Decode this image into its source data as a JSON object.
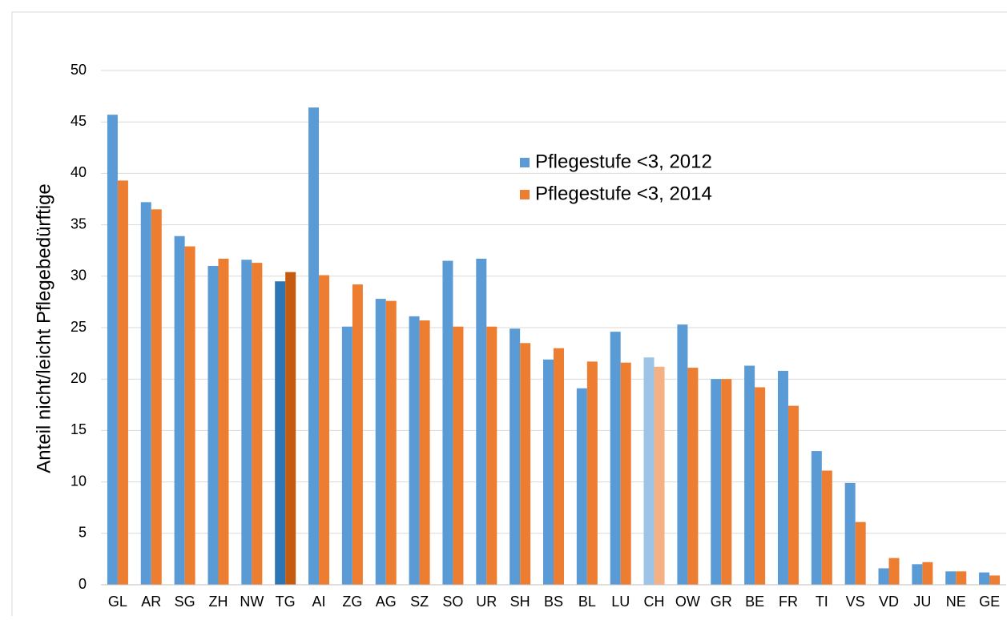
{
  "chart_data": {
    "type": "bar",
    "y_label": "Anteil nicht/leicht Pflegebedürftige",
    "categories": [
      "GL",
      "AR",
      "SG",
      "ZH",
      "NW",
      "TG",
      "AI",
      "ZG",
      "AG",
      "SZ",
      "SO",
      "UR",
      "SH",
      "BS",
      "BL",
      "LU",
      "CH",
      "OW",
      "GR",
      "BE",
      "FR",
      "TI",
      "VS",
      "VD",
      "JU",
      "NE",
      "GE"
    ],
    "series": [
      {
        "name": "Pflegestufe <3, 2012",
        "color": "#5b9bd5",
        "colors": [
          "#5b9bd5",
          "#5b9bd5",
          "#5b9bd5",
          "#5b9bd5",
          "#5b9bd5",
          "#2e75b6",
          "#5b9bd5",
          "#5b9bd5",
          "#5b9bd5",
          "#5b9bd5",
          "#5b9bd5",
          "#5b9bd5",
          "#5b9bd5",
          "#5b9bd5",
          "#5b9bd5",
          "#5b9bd5",
          "#9dc3e6",
          "#5b9bd5",
          "#5b9bd5",
          "#5b9bd5",
          "#5b9bd5",
          "#5b9bd5",
          "#5b9bd5",
          "#5b9bd5",
          "#5b9bd5",
          "#5b9bd5",
          "#5b9bd5"
        ],
        "values": [
          45.7,
          37.2,
          33.9,
          31.0,
          31.6,
          29.5,
          46.4,
          25.1,
          27.8,
          26.1,
          31.5,
          31.7,
          24.9,
          21.9,
          19.1,
          24.6,
          22.1,
          25.3,
          20.0,
          21.3,
          20.8,
          13.0,
          9.9,
          1.6,
          2.0,
          1.3,
          1.2
        ]
      },
      {
        "name": "Pflegestufe <3, 2014",
        "color": "#ed7d31",
        "colors": [
          "#ed7d31",
          "#ed7d31",
          "#ed7d31",
          "#ed7d31",
          "#ed7d31",
          "#c55a11",
          "#ed7d31",
          "#ed7d31",
          "#ed7d31",
          "#ed7d31",
          "#ed7d31",
          "#ed7d31",
          "#ed7d31",
          "#ed7d31",
          "#ed7d31",
          "#ed7d31",
          "#f4b183",
          "#ed7d31",
          "#ed7d31",
          "#ed7d31",
          "#ed7d31",
          "#ed7d31",
          "#ed7d31",
          "#ed7d31",
          "#ed7d31",
          "#ed7d31",
          "#ed7d31"
        ],
        "values": [
          39.3,
          36.5,
          32.9,
          31.7,
          31.3,
          30.4,
          30.1,
          29.2,
          27.6,
          25.7,
          25.1,
          25.1,
          23.5,
          23.0,
          21.7,
          21.6,
          21.2,
          21.1,
          20.0,
          19.2,
          17.4,
          11.1,
          6.1,
          2.6,
          2.2,
          1.3,
          0.9
        ]
      }
    ],
    "ylim": [
      0,
      50
    ],
    "yticks": [
      0,
      5,
      10,
      15,
      20,
      25,
      30,
      35,
      40,
      45,
      50
    ],
    "grid": true
  }
}
